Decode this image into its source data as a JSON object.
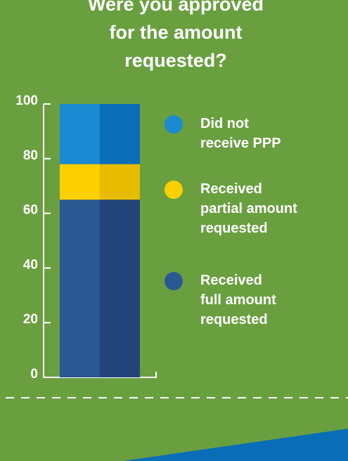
{
  "chart_data": {
    "type": "stacked_bar",
    "title": "Were you approved\nfor the amount\nrequested?",
    "categories": [
      null
    ],
    "series": [
      {
        "name": "Received\nfull amount\nrequested",
        "color": "#2a5892",
        "shade": "#22447a",
        "values": [
          65
        ]
      },
      {
        "name": "Received\npartial amount\nrequested",
        "color": "#fccf00",
        "shade": "#e6bb00",
        "values": [
          13
        ]
      },
      {
        "name": "Did not\nreceive PPP",
        "color": "#1a8ad2",
        "shade": "#0a6db8",
        "values": [
          22
        ]
      }
    ],
    "ylim": [
      0,
      100
    ],
    "yticks": [
      0,
      20,
      40,
      60,
      80,
      100
    ],
    "legend": "right"
  }
}
